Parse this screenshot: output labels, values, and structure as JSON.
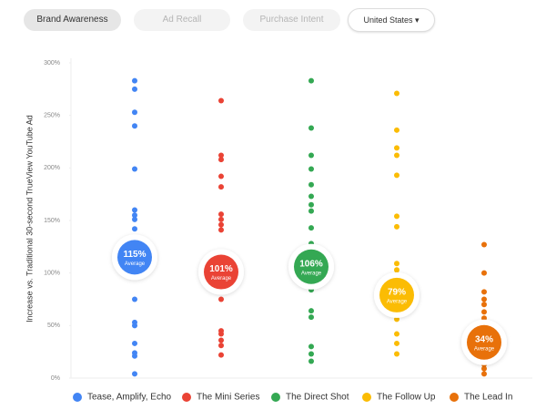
{
  "tabs": [
    "Brand Awareness",
    "Ad Recall",
    "Purchase Intent"
  ],
  "dropdown": "United States",
  "chart_data": {
    "type": "strip",
    "ylabel": "Increase vs. Traditional 30-second TrueView YouTube Ad",
    "ylim": [
      0,
      300
    ],
    "yticks": [
      {
        "value": 0,
        "label": "0%"
      },
      {
        "value": 50,
        "label": "50%"
      },
      {
        "value": 100,
        "label": "100%"
      },
      {
        "value": 150,
        "label": "150%"
      },
      {
        "value": 200,
        "label": "200%"
      },
      {
        "value": 250,
        "label": "250%"
      },
      {
        "value": 300,
        "label": "300%"
      }
    ],
    "average_text": "Average",
    "series": [
      {
        "name": "Tease, Amplify, Echo",
        "color": "#4285f4",
        "values": [
          283,
          275,
          253,
          240,
          199,
          160,
          155,
          151,
          142,
          100,
          75,
          53,
          50,
          33,
          24,
          21,
          4
        ],
        "average": 115,
        "average_label": "115%"
      },
      {
        "name": "The Mini Series",
        "color": "#ea4335",
        "values": [
          264,
          212,
          208,
          192,
          182,
          156,
          151,
          146,
          141,
          75,
          45,
          42,
          36,
          31,
          22
        ],
        "average": 101,
        "average_label": "101%"
      },
      {
        "name": "The Direct Shot",
        "color": "#34a853",
        "values": [
          283,
          238,
          212,
          199,
          184,
          173,
          165,
          159,
          143,
          128,
          125,
          121,
          118,
          114,
          91,
          84,
          64,
          58,
          30,
          23,
          16
        ],
        "average": 106,
        "average_label": "106%"
      },
      {
        "name": "The Follow Up",
        "color": "#fbbc04",
        "values": [
          271,
          236,
          219,
          212,
          193,
          154,
          144,
          109,
          103,
          99,
          93,
          88,
          56,
          42,
          33,
          23
        ],
        "average": 79,
        "average_label": "79%"
      },
      {
        "name": "The Lead In",
        "color": "#e8710a",
        "values": [
          127,
          100,
          82,
          75,
          70,
          63,
          57,
          50,
          13,
          9,
          4
        ],
        "average": 34,
        "average_label": "34%"
      }
    ]
  }
}
